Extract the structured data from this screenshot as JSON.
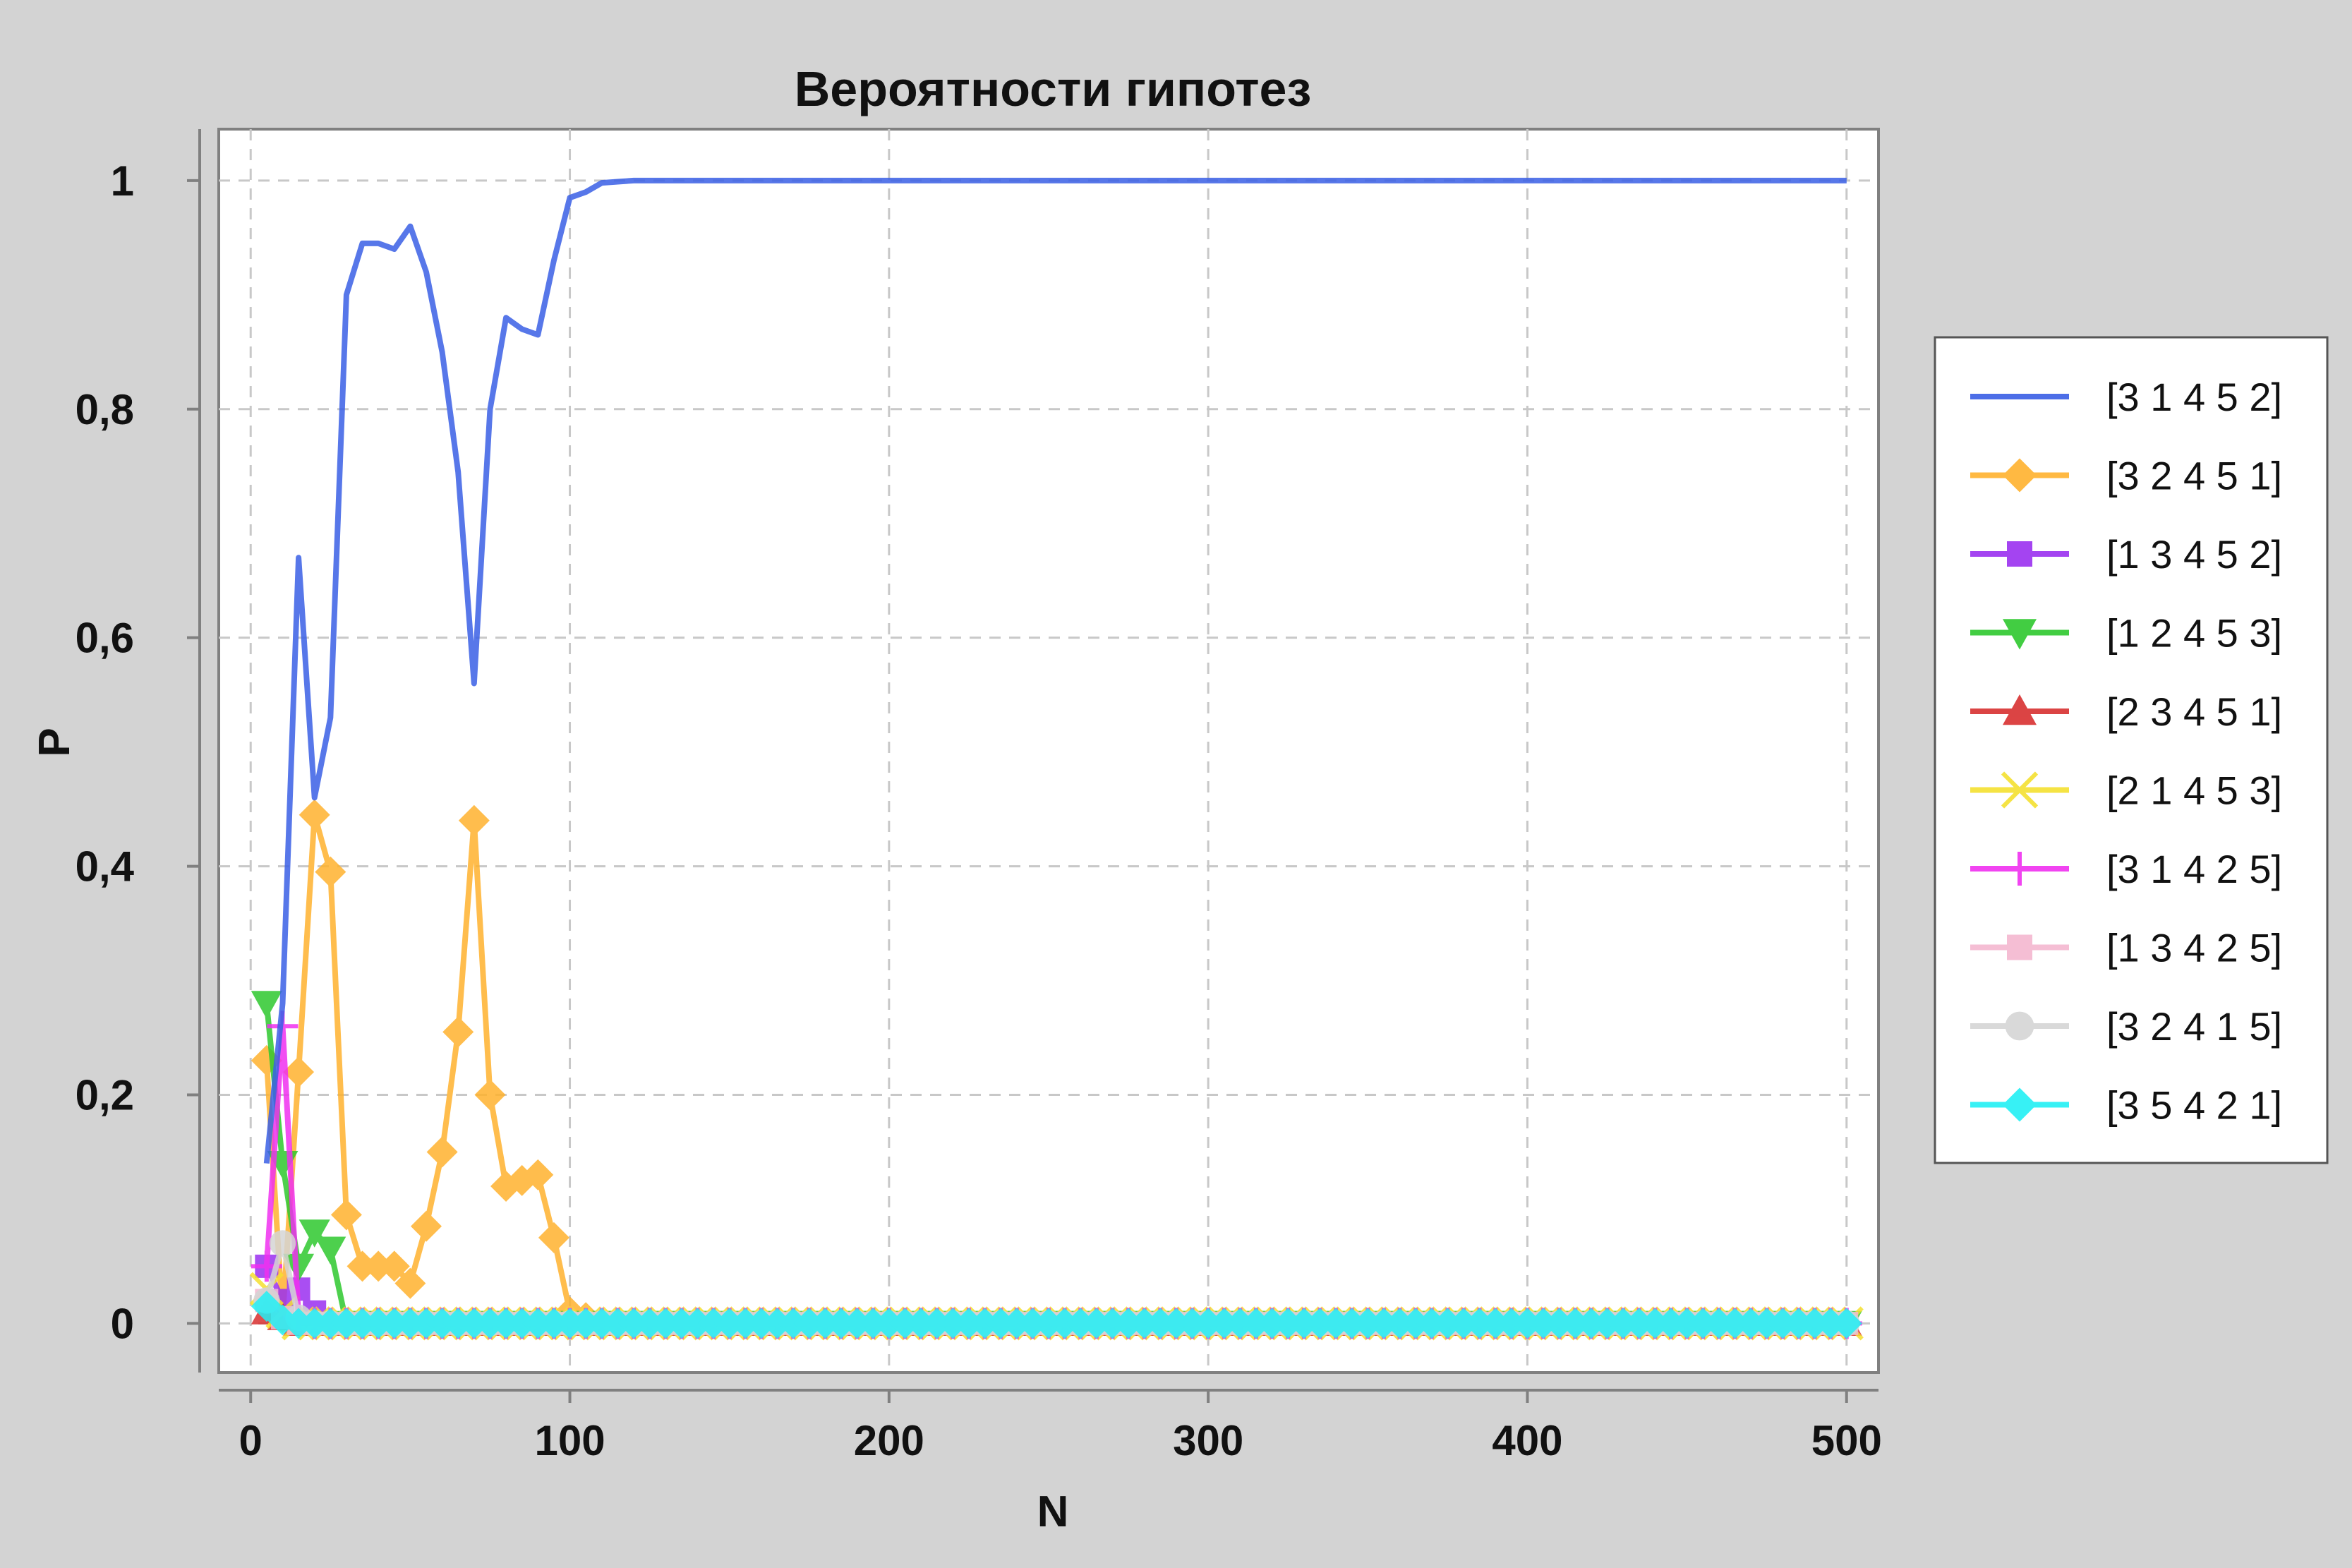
{
  "chart_data": {
    "type": "line",
    "title": "Вероятности гипотез",
    "xlabel": "N",
    "ylabel": "P",
    "xlim": [
      -10,
      510
    ],
    "ylim": [
      -0.043,
      1.045
    ],
    "xticks": [
      0,
      100,
      200,
      300,
      400,
      500
    ],
    "xtick_labels": [
      "0",
      "100",
      "200",
      "300",
      "400",
      "500"
    ],
    "yticks": [
      0,
      0.2,
      0.4,
      0.6,
      0.8,
      1
    ],
    "ytick_labels": [
      "0",
      "0,2",
      "0,4",
      "0,6",
      "0,8",
      "1"
    ],
    "grid": true,
    "legend_position": "right",
    "x": [
      5,
      10,
      15,
      20,
      25,
      30,
      35,
      40,
      45,
      50,
      55,
      60,
      65,
      70,
      75,
      80,
      85,
      90,
      95,
      100,
      105,
      110,
      115,
      120,
      125,
      130,
      135,
      140,
      145,
      150,
      155,
      160,
      165,
      170,
      175,
      180,
      185,
      190,
      195,
      200,
      205,
      210,
      215,
      220,
      225,
      230,
      235,
      240,
      245,
      250,
      255,
      260,
      265,
      270,
      275,
      280,
      285,
      290,
      295,
      300,
      305,
      310,
      315,
      320,
      325,
      330,
      335,
      340,
      345,
      350,
      355,
      360,
      365,
      370,
      375,
      380,
      385,
      390,
      395,
      400,
      405,
      410,
      415,
      420,
      425,
      430,
      435,
      440,
      445,
      450,
      455,
      460,
      465,
      470,
      475,
      480,
      485,
      490,
      495,
      500
    ],
    "series": [
      {
        "name": "[3 1 4 5 2]",
        "color": "#3a5fe5",
        "marker": "none",
        "values": [
          0.14,
          0.28,
          0.67,
          0.46,
          0.53,
          0.9,
          0.945,
          0.945,
          0.94,
          0.96,
          0.92,
          0.85,
          0.745,
          0.56,
          0.8,
          0.88,
          0.87,
          0.865,
          0.93,
          0.985,
          0.99,
          0.998,
          0.999,
          1,
          1,
          1,
          1,
          1,
          1,
          1,
          1,
          1,
          1,
          1,
          1,
          1,
          1,
          1,
          1,
          1,
          1,
          1,
          1,
          1,
          1,
          1,
          1,
          1,
          1,
          1,
          1,
          1,
          1,
          1,
          1,
          1,
          1,
          1,
          1,
          1,
          1,
          1,
          1,
          1,
          1,
          1,
          1,
          1,
          1,
          1,
          1,
          1,
          1,
          1,
          1,
          1,
          1,
          1,
          1,
          1,
          1,
          1,
          1,
          1,
          1,
          1,
          1,
          1,
          1,
          1,
          1,
          1,
          1,
          1,
          1,
          1,
          1,
          1,
          1,
          1
        ]
      },
      {
        "name": "[3 2 4 5 1]",
        "color": "#ffb22e",
        "marker": "diamond",
        "values": [
          0.23,
          0.005,
          0.22,
          0.445,
          0.395,
          0.095,
          0.05,
          0.05,
          0.05,
          0.035,
          0.085,
          0.15,
          0.255,
          0.44,
          0.2,
          0.12,
          0.125,
          0.13,
          0.075,
          0.01,
          0.005,
          0,
          0,
          0,
          0,
          0,
          0,
          0,
          0,
          0,
          0,
          0,
          0,
          0,
          0,
          0,
          0,
          0,
          0,
          0,
          0,
          0,
          0,
          0,
          0,
          0,
          0,
          0,
          0,
          0,
          0,
          0,
          0,
          0,
          0,
          0,
          0,
          0,
          0,
          0,
          0,
          0,
          0,
          0,
          0,
          0,
          0,
          0,
          0,
          0,
          0,
          0,
          0,
          0,
          0,
          0,
          0,
          0,
          0,
          0,
          0,
          0,
          0,
          0,
          0,
          0,
          0,
          0,
          0,
          0,
          0,
          0,
          0,
          0,
          0,
          0,
          0,
          0,
          0,
          0
        ]
      },
      {
        "name": "[1 3 4 5 2]",
        "color": "#9b30f0",
        "marker": "square",
        "values": [
          0.05,
          0.02,
          0.03,
          0.01,
          0,
          0,
          0,
          0,
          0,
          0,
          0,
          0,
          0,
          0,
          0,
          0,
          0,
          0,
          0,
          0,
          0,
          0,
          0,
          0,
          0,
          0,
          0,
          0,
          0,
          0,
          0,
          0,
          0,
          0,
          0,
          0,
          0,
          0,
          0,
          0,
          0,
          0,
          0,
          0,
          0,
          0,
          0,
          0,
          0,
          0,
          0,
          0,
          0,
          0,
          0,
          0,
          0,
          0,
          0,
          0,
          0,
          0,
          0,
          0,
          0,
          0,
          0,
          0,
          0,
          0,
          0,
          0,
          0,
          0,
          0,
          0,
          0,
          0,
          0,
          0,
          0,
          0,
          0,
          0,
          0,
          0,
          0,
          0,
          0,
          0,
          0,
          0,
          0,
          0,
          0,
          0,
          0,
          0,
          0,
          0
        ]
      },
      {
        "name": "[1 2 4 5 3]",
        "color": "#2ec82e",
        "marker": "triangle-down",
        "values": [
          0.28,
          0.14,
          0.05,
          0.08,
          0.065,
          0,
          0,
          0,
          0,
          0,
          0,
          0,
          0,
          0,
          0,
          0,
          0,
          0,
          0,
          0,
          0,
          0,
          0,
          0,
          0,
          0,
          0,
          0,
          0,
          0,
          0,
          0,
          0,
          0,
          0,
          0,
          0,
          0,
          0,
          0,
          0,
          0,
          0,
          0,
          0,
          0,
          0,
          0,
          0,
          0,
          0,
          0,
          0,
          0,
          0,
          0,
          0,
          0,
          0,
          0,
          0,
          0,
          0,
          0,
          0,
          0,
          0,
          0,
          0,
          0,
          0,
          0,
          0,
          0,
          0,
          0,
          0,
          0,
          0,
          0,
          0,
          0,
          0,
          0,
          0,
          0,
          0,
          0,
          0,
          0,
          0,
          0,
          0,
          0,
          0,
          0,
          0,
          0,
          0,
          0
        ]
      },
      {
        "name": "[2 3 4 5 1]",
        "color": "#d83030",
        "marker": "triangle-up",
        "values": [
          0.01,
          0.005,
          0,
          0,
          0,
          0,
          0,
          0,
          0,
          0,
          0,
          0,
          0,
          0,
          0,
          0,
          0,
          0,
          0,
          0,
          0,
          0,
          0,
          0,
          0,
          0,
          0,
          0,
          0,
          0,
          0,
          0,
          0,
          0,
          0,
          0,
          0,
          0,
          0,
          0,
          0,
          0,
          0,
          0,
          0,
          0,
          0,
          0,
          0,
          0,
          0,
          0,
          0,
          0,
          0,
          0,
          0,
          0,
          0,
          0,
          0,
          0,
          0,
          0,
          0,
          0,
          0,
          0,
          0,
          0,
          0,
          0,
          0,
          0,
          0,
          0,
          0,
          0,
          0,
          0,
          0,
          0,
          0,
          0,
          0,
          0,
          0,
          0,
          0,
          0,
          0,
          0,
          0,
          0,
          0,
          0,
          0,
          0,
          0,
          0
        ]
      },
      {
        "name": "[2 1 4 5 3]",
        "color": "#f5e030",
        "marker": "x",
        "values": [
          0.03,
          0.01,
          0,
          0,
          0,
          0,
          0,
          0,
          0,
          0,
          0,
          0,
          0,
          0,
          0,
          0,
          0,
          0,
          0,
          0,
          0,
          0,
          0,
          0,
          0,
          0,
          0,
          0,
          0,
          0,
          0,
          0,
          0,
          0,
          0,
          0,
          0,
          0,
          0,
          0,
          0,
          0,
          0,
          0,
          0,
          0,
          0,
          0,
          0,
          0,
          0,
          0,
          0,
          0,
          0,
          0,
          0,
          0,
          0,
          0,
          0,
          0,
          0,
          0,
          0,
          0,
          0,
          0,
          0,
          0,
          0,
          0,
          0,
          0,
          0,
          0,
          0,
          0,
          0,
          0,
          0,
          0,
          0,
          0,
          0,
          0,
          0,
          0,
          0,
          0,
          0,
          0,
          0,
          0,
          0,
          0,
          0,
          0,
          0,
          0
        ]
      },
      {
        "name": "[3 1 4 2 5]",
        "color": "#f030f0",
        "marker": "plus",
        "values": [
          0.05,
          0.26,
          0.005,
          0,
          0,
          0,
          0,
          0,
          0,
          0,
          0,
          0,
          0,
          0,
          0,
          0,
          0,
          0,
          0,
          0,
          0,
          0,
          0,
          0,
          0,
          0,
          0,
          0,
          0,
          0,
          0,
          0,
          0,
          0,
          0,
          0,
          0,
          0,
          0,
          0,
          0,
          0,
          0,
          0,
          0,
          0,
          0,
          0,
          0,
          0,
          0,
          0,
          0,
          0,
          0,
          0,
          0,
          0,
          0,
          0,
          0,
          0,
          0,
          0,
          0,
          0,
          0,
          0,
          0,
          0,
          0,
          0,
          0,
          0,
          0,
          0,
          0,
          0,
          0,
          0,
          0,
          0,
          0,
          0,
          0,
          0,
          0,
          0,
          0,
          0,
          0,
          0,
          0,
          0,
          0,
          0,
          0,
          0,
          0,
          0
        ]
      },
      {
        "name": "[1 3 4 2 5]",
        "color": "#f5b8d0",
        "marker": "square",
        "values": [
          0.02,
          0.005,
          0,
          0,
          0,
          0,
          0,
          0,
          0,
          0,
          0,
          0,
          0,
          0,
          0,
          0,
          0,
          0,
          0,
          0,
          0,
          0,
          0,
          0,
          0,
          0,
          0,
          0,
          0,
          0,
          0,
          0,
          0,
          0,
          0,
          0,
          0,
          0,
          0,
          0,
          0,
          0,
          0,
          0,
          0,
          0,
          0,
          0,
          0,
          0,
          0,
          0,
          0,
          0,
          0,
          0,
          0,
          0,
          0,
          0,
          0,
          0,
          0,
          0,
          0,
          0,
          0,
          0,
          0,
          0,
          0,
          0,
          0,
          0,
          0,
          0,
          0,
          0,
          0,
          0,
          0,
          0,
          0,
          0,
          0,
          0,
          0,
          0,
          0,
          0,
          0,
          0,
          0,
          0,
          0,
          0,
          0,
          0,
          0,
          0
        ]
      },
      {
        "name": "[3 2 4 1 5]",
        "color": "#d5d5d5",
        "marker": "circle",
        "values": [
          0.02,
          0.07,
          0.005,
          0,
          0,
          0,
          0,
          0,
          0,
          0,
          0,
          0,
          0,
          0,
          0,
          0,
          0,
          0,
          0,
          0,
          0,
          0,
          0,
          0,
          0,
          0,
          0,
          0,
          0,
          0,
          0,
          0,
          0,
          0,
          0,
          0,
          0,
          0,
          0,
          0,
          0,
          0,
          0,
          0,
          0,
          0,
          0,
          0,
          0,
          0,
          0,
          0,
          0,
          0,
          0,
          0,
          0,
          0,
          0,
          0,
          0,
          0,
          0,
          0,
          0,
          0,
          0,
          0,
          0,
          0,
          0,
          0,
          0,
          0,
          0,
          0,
          0,
          0,
          0,
          0,
          0,
          0,
          0,
          0,
          0,
          0,
          0,
          0,
          0,
          0,
          0,
          0,
          0,
          0,
          0,
          0,
          0,
          0,
          0,
          0
        ]
      },
      {
        "name": "[3 5 4 2 1]",
        "color": "#22f0f5",
        "marker": "diamond",
        "values": [
          0.015,
          0.003,
          0,
          0,
          0,
          0,
          0,
          0,
          0,
          0,
          0,
          0,
          0,
          0,
          0,
          0,
          0,
          0,
          0,
          0,
          0,
          0,
          0,
          0,
          0,
          0,
          0,
          0,
          0,
          0,
          0,
          0,
          0,
          0,
          0,
          0,
          0,
          0,
          0,
          0,
          0,
          0,
          0,
          0,
          0,
          0,
          0,
          0,
          0,
          0,
          0,
          0,
          0,
          0,
          0,
          0,
          0,
          0,
          0,
          0,
          0,
          0,
          0,
          0,
          0,
          0,
          0,
          0,
          0,
          0,
          0,
          0,
          0,
          0,
          0,
          0,
          0,
          0,
          0,
          0,
          0,
          0,
          0,
          0,
          0,
          0,
          0,
          0,
          0,
          0,
          0,
          0,
          0,
          0,
          0,
          0,
          0,
          0,
          0,
          0
        ]
      }
    ]
  }
}
